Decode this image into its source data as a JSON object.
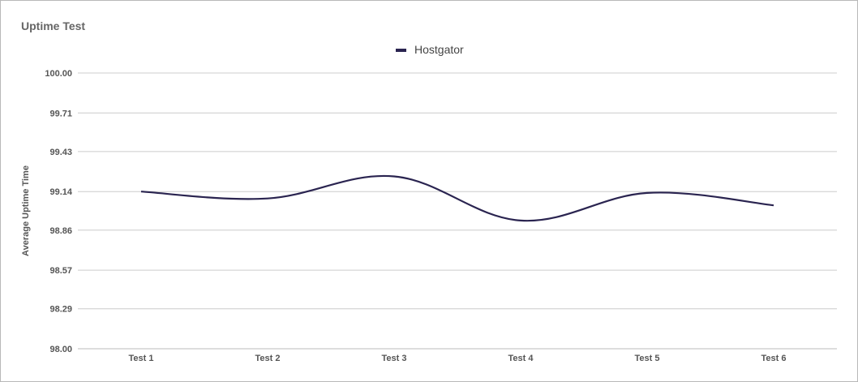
{
  "chart_data": {
    "type": "line",
    "title": "Uptime Test",
    "xlabel": "",
    "ylabel": "Average Uptime Time",
    "categories": [
      "Test 1",
      "Test 2",
      "Test 3",
      "Test 4",
      "Test 5",
      "Test 6"
    ],
    "series": [
      {
        "name": "Hostgator",
        "values": [
          99.14,
          99.09,
          99.25,
          98.93,
          99.13,
          99.04
        ],
        "color": "#2a2450"
      }
    ],
    "ylim": [
      98.0,
      100.0
    ],
    "yticks": [
      "98.00",
      "98.29",
      "98.57",
      "98.86",
      "99.14",
      "99.43",
      "99.71",
      "100.00"
    ],
    "grid": true,
    "legend_position": "top-center",
    "smooth": true
  }
}
